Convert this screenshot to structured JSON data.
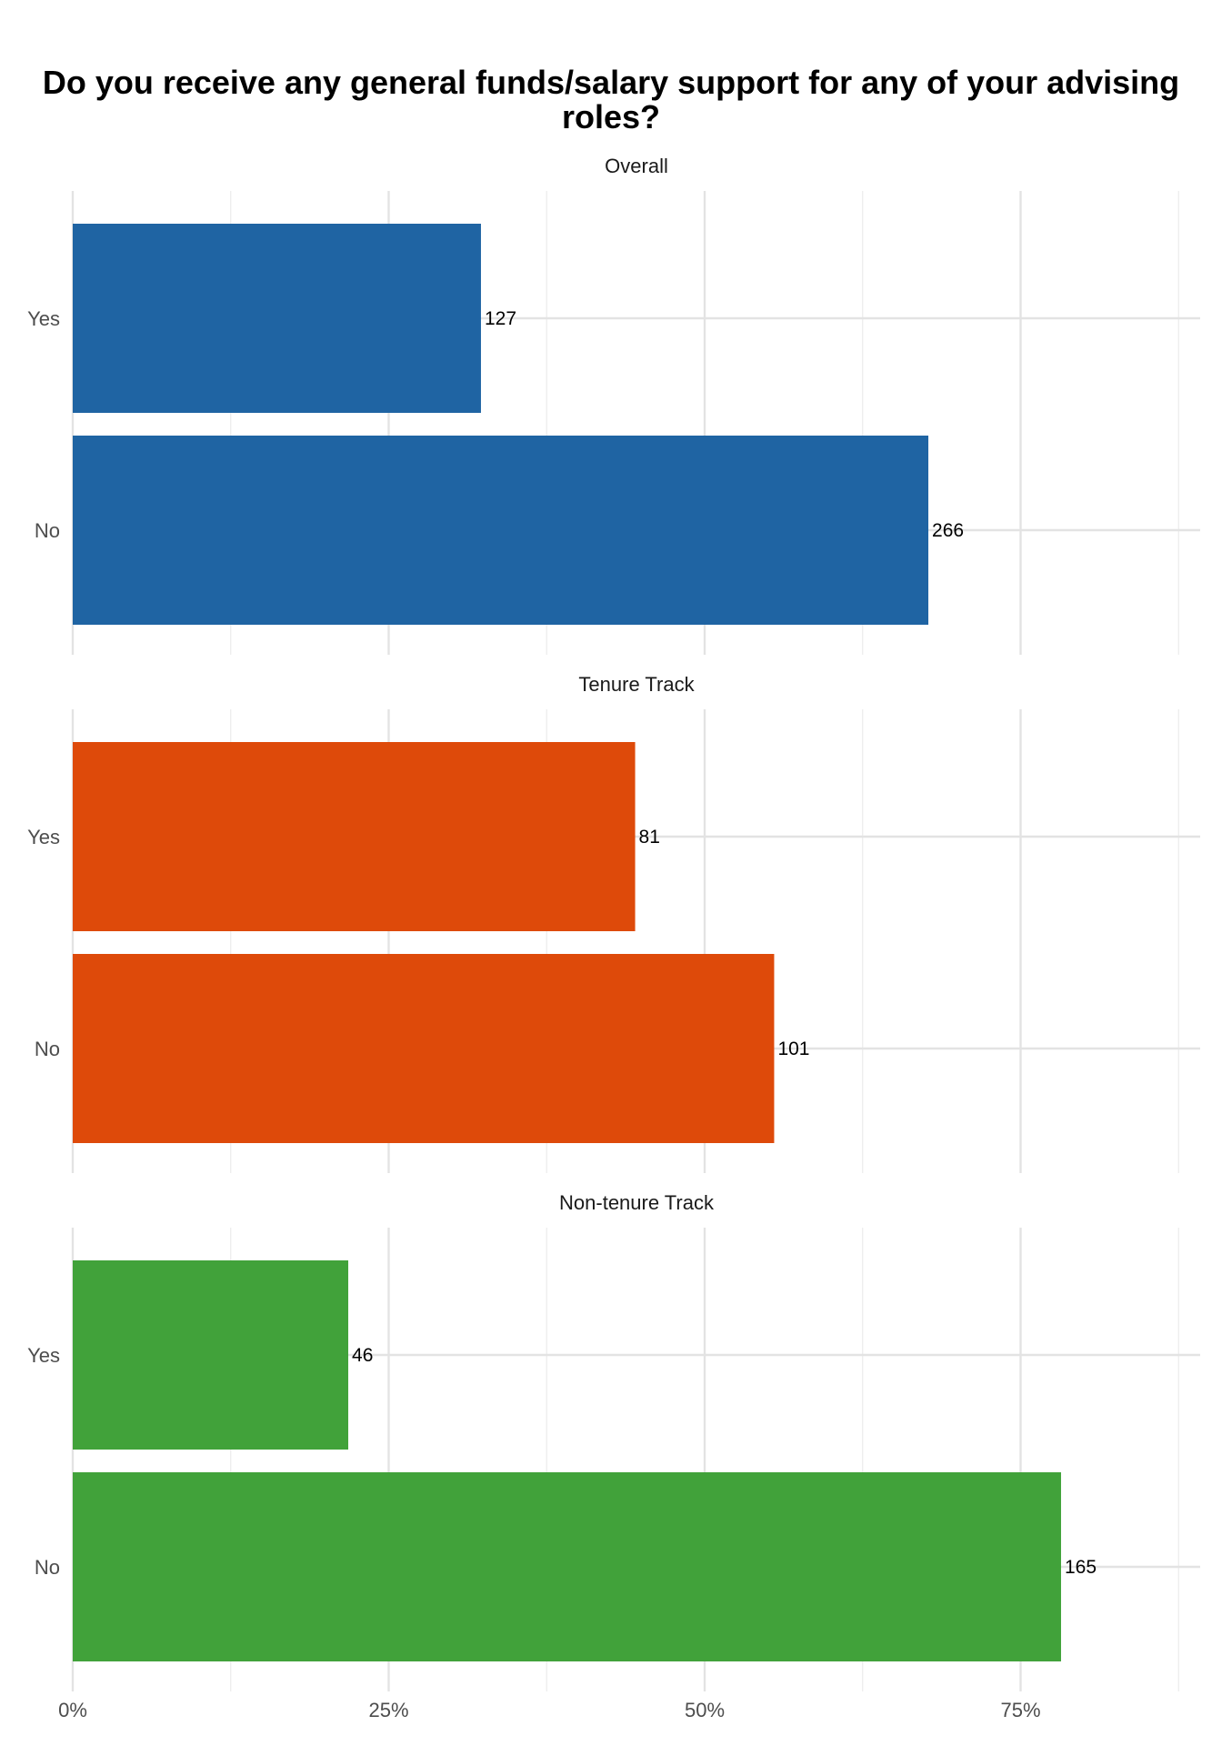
{
  "chart_data": {
    "type": "bar",
    "orientation": "horizontal",
    "title": "Do you receive any general funds/salary support for any of your advising roles?",
    "categories": [
      "Yes",
      "No"
    ],
    "xlim": [
      0,
      0.9
    ],
    "x_ticks": [
      0,
      0.25,
      0.5,
      0.75
    ],
    "x_tick_labels": [
      "0%",
      "25%",
      "50%",
      "75%"
    ],
    "grid": true,
    "legend": "none",
    "panels": [
      {
        "strip": "Overall",
        "color": "#1f64a3",
        "bars": [
          {
            "category": "Yes",
            "value": 0.323,
            "label": "127"
          },
          {
            "category": "No",
            "value": 0.677,
            "label": "266"
          }
        ]
      },
      {
        "strip": "Tenure Track",
        "color": "#de4a0a",
        "bars": [
          {
            "category": "Yes",
            "value": 0.445,
            "label": "81"
          },
          {
            "category": "No",
            "value": 0.555,
            "label": "101"
          }
        ]
      },
      {
        "strip": "Non-tenure Track",
        "color": "#41a23a",
        "bars": [
          {
            "category": "Yes",
            "value": 0.218,
            "label": "46"
          },
          {
            "category": "No",
            "value": 0.782,
            "label": "165"
          }
        ]
      }
    ]
  }
}
